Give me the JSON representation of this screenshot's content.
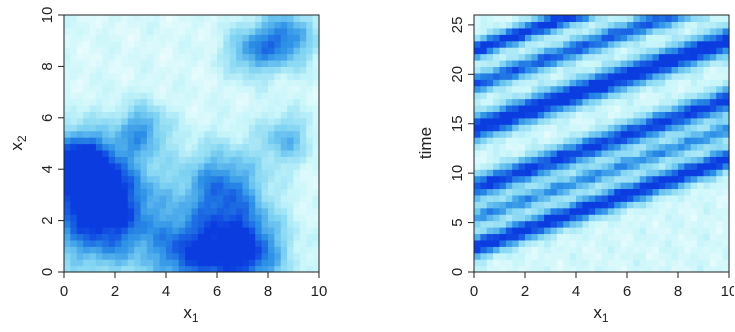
{
  "chart_data": [
    {
      "type": "heatmap",
      "xlabel": "x",
      "xlabel_sub": "1",
      "ylabel": "x",
      "ylabel_sub": "2",
      "xlim": [
        0,
        10
      ],
      "ylim": [
        0,
        10
      ],
      "xticks": [
        "0",
        "2",
        "4",
        "6",
        "8",
        "10"
      ],
      "yticks": [
        "0",
        "2",
        "4",
        "6",
        "8",
        "10"
      ],
      "colormap": [
        "#ffffff",
        "#c9f6fa",
        "#7fd3f2",
        "#2b8fe6",
        "#0a3ce0"
      ],
      "field": {
        "description_blobs": [
          {
            "x": 1.5,
            "y": 2.5,
            "r": 2.2,
            "v": 0.95
          },
          {
            "x": 0.6,
            "y": 4.2,
            "r": 1.3,
            "v": 0.75
          },
          {
            "x": 7.0,
            "y": 0.8,
            "r": 1.6,
            "v": 0.85
          },
          {
            "x": 4.8,
            "y": 0.7,
            "r": 1.4,
            "v": 0.6
          },
          {
            "x": 8.7,
            "y": 9.1,
            "r": 1.1,
            "v": 0.6
          },
          {
            "x": 7.3,
            "y": 8.6,
            "r": 1.0,
            "v": 0.45
          },
          {
            "x": 6.2,
            "y": 3.3,
            "r": 1.6,
            "v": 0.6
          },
          {
            "x": 3.1,
            "y": 5.6,
            "r": 1.0,
            "v": 0.45
          },
          {
            "x": 8.7,
            "y": 5.2,
            "r": 1.0,
            "v": 0.4
          }
        ]
      }
    },
    {
      "type": "heatmap",
      "xlabel": "x",
      "xlabel_sub": "1",
      "ylabel": "time",
      "xlim": [
        0,
        10
      ],
      "ylim": [
        0,
        26
      ],
      "xticks": [
        "0",
        "2",
        "4",
        "6",
        "8",
        "10"
      ],
      "yticks": [
        "0",
        "5",
        "10",
        "15",
        "20",
        "25"
      ],
      "colormap": [
        "#ffffff",
        "#c9f6fa",
        "#7fd3f2",
        "#2b8fe6",
        "#0a3ce0"
      ],
      "field": {
        "description_bands_slope_time_per_x1": 0.9,
        "description_bands": [
          {
            "t0": 2.5,
            "w": 1.2,
            "v": 0.85
          },
          {
            "t0": 8.5,
            "w": 1.3,
            "v": 0.8
          },
          {
            "t0": 14.5,
            "w": 1.4,
            "v": 0.9
          },
          {
            "t0": 19.0,
            "w": 1.1,
            "v": 0.7
          },
          {
            "t0": 22.5,
            "w": 1.0,
            "v": 0.85
          },
          {
            "t0": 5.5,
            "w": 0.9,
            "v": 0.55
          }
        ]
      }
    }
  ]
}
